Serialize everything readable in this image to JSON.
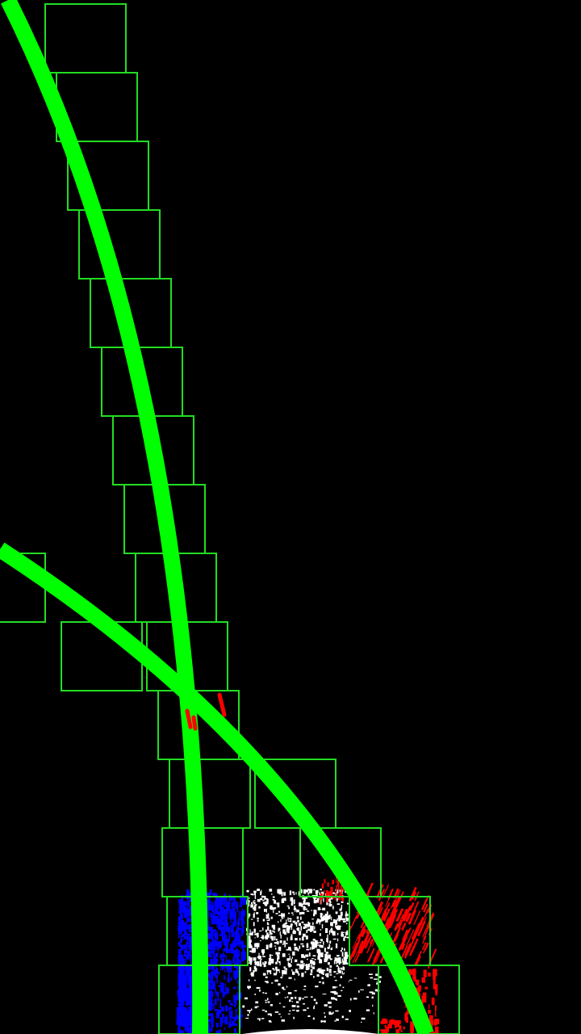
{
  "view": {
    "kind": "lane-detection-sliding-window-debug",
    "background_color": "#000000"
  },
  "colors": {
    "window_box": "#22dd22",
    "fit_curve": "#00ff00",
    "left_lane_pixels": "#0000ff",
    "right_lane_pixels": "#ff0000",
    "unassigned_pixels": "#ffffff"
  },
  "counts": {
    "left_windows": 15,
    "right_windows": 8
  }
}
